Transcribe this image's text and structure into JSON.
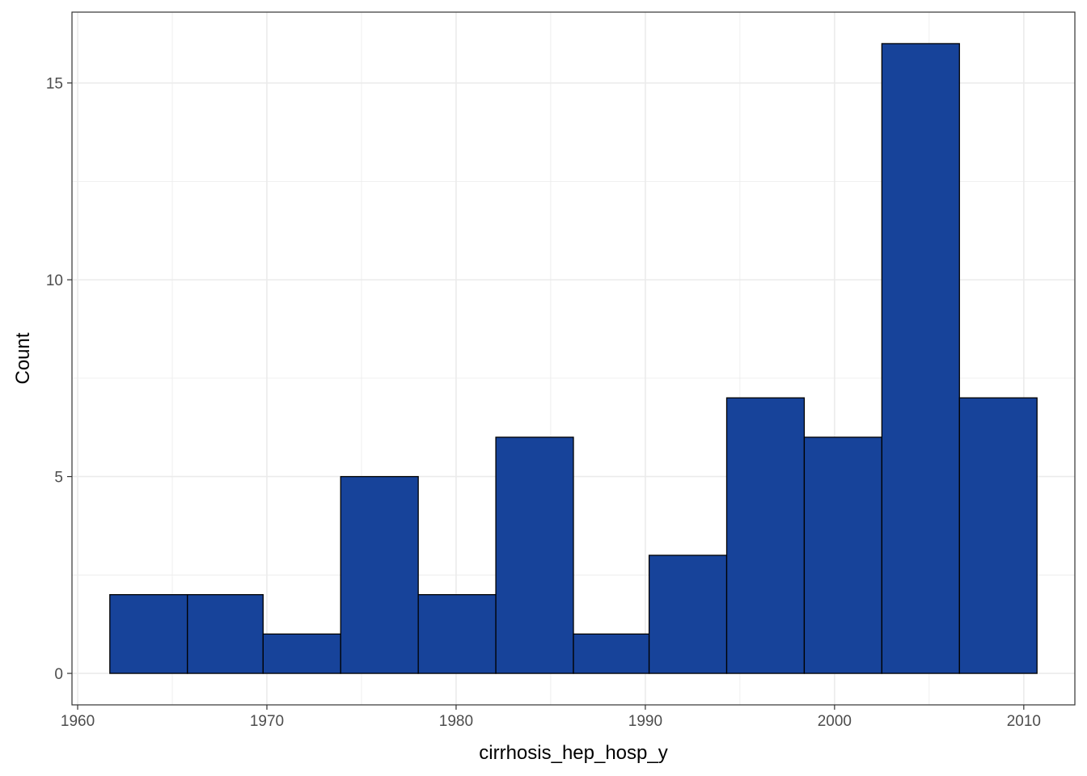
{
  "chart_data": {
    "type": "bar",
    "subtype": "histogram",
    "title": "",
    "xlabel": "cirrhosis_hep_hosp_y",
    "ylabel": "Count",
    "bins": [
      {
        "x0": 1961.7,
        "x1": 1965.8,
        "count": 2
      },
      {
        "x0": 1965.8,
        "x1": 1969.8,
        "count": 2
      },
      {
        "x0": 1969.8,
        "x1": 1973.9,
        "count": 1
      },
      {
        "x0": 1973.9,
        "x1": 1978.0,
        "count": 5
      },
      {
        "x0": 1978.0,
        "x1": 1982.1,
        "count": 2
      },
      {
        "x0": 1982.1,
        "x1": 1986.2,
        "count": 6
      },
      {
        "x0": 1986.2,
        "x1": 1990.2,
        "count": 1
      },
      {
        "x0": 1990.2,
        "x1": 1994.3,
        "count": 3
      },
      {
        "x0": 1994.3,
        "x1": 1998.4,
        "count": 7
      },
      {
        "x0": 1998.4,
        "x1": 2002.5,
        "count": 6
      },
      {
        "x0": 2002.5,
        "x1": 2006.6,
        "count": 16
      },
      {
        "x0": 2006.6,
        "x1": 2010.7,
        "count": 7
      }
    ],
    "xlim": [
      1959.7,
      2012.7
    ],
    "ylim": [
      -0.8,
      16.8
    ],
    "xticks": [
      1960,
      1970,
      1980,
      1990,
      2000,
      2010
    ],
    "yticks": [
      0,
      5,
      10,
      15
    ],
    "bar_color": "#17439A",
    "bar_edge_color": "#000000",
    "grid": true,
    "grid_color": "#EBEBEB",
    "panel_border_color": "#333333",
    "legend": "none"
  }
}
